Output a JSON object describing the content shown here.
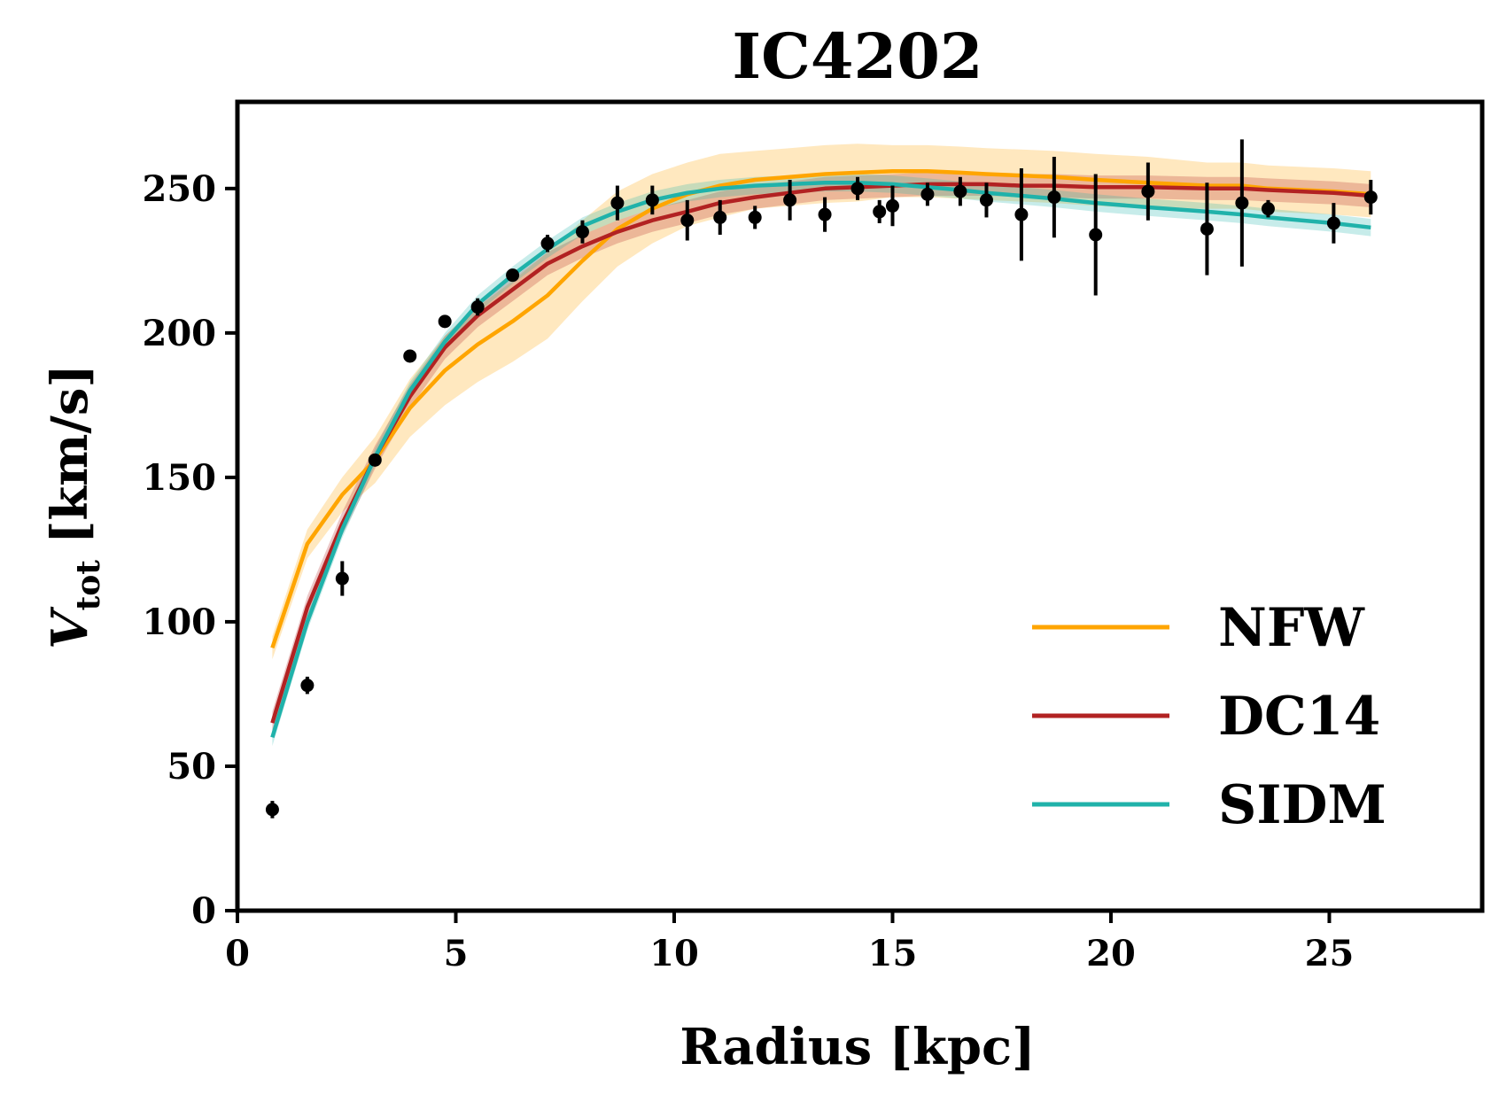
{
  "chart_data": {
    "type": "line",
    "title": "IC4202",
    "xlabel": "Radius [kpc]",
    "ylabel_main": "V",
    "ylabel_sub": "tot",
    "ylabel_unit": "[km/s]",
    "xlim": [
      0,
      28.5
    ],
    "ylim": [
      0,
      280
    ],
    "xticks": [
      0,
      5,
      10,
      15,
      20,
      25
    ],
    "yticks": [
      0,
      50,
      100,
      150,
      200,
      250
    ],
    "grid": false,
    "legend_position": "bottom-right",
    "observed": {
      "x": [
        0.8,
        1.6,
        2.4,
        3.15,
        3.95,
        4.75,
        5.5,
        6.3,
        7.1,
        7.9,
        8.7,
        9.5,
        10.3,
        11.05,
        11.85,
        12.65,
        13.45,
        14.2,
        14.7,
        15.0,
        15.8,
        16.55,
        17.15,
        17.95,
        18.7,
        19.65,
        20.85,
        22.2,
        23.0,
        23.6,
        25.1,
        25.95
      ],
      "y": [
        35,
        78,
        115,
        156,
        192,
        204,
        209,
        220,
        231,
        235,
        245,
        246,
        239,
        240,
        240,
        246,
        241,
        250,
        242,
        244,
        248,
        249,
        246,
        241,
        247,
        234,
        249,
        236,
        245,
        243,
        238,
        247
      ],
      "err": [
        3,
        3,
        6,
        2,
        2,
        2,
        3,
        2,
        3,
        4,
        6,
        5,
        7,
        6,
        4,
        7,
        6,
        4,
        4,
        7,
        4,
        5,
        6,
        16,
        14,
        21,
        10,
        16,
        22,
        3,
        7,
        6
      ],
      "color": "#000000"
    },
    "series": [
      {
        "name": "NFW",
        "color": "#ffa500",
        "x": [
          0.8,
          1.6,
          2.4,
          3.15,
          3.95,
          4.75,
          5.5,
          6.3,
          7.1,
          7.9,
          8.7,
          9.5,
          10.3,
          11.05,
          11.85,
          12.65,
          13.45,
          14.2,
          15.0,
          15.8,
          16.55,
          17.15,
          17.95,
          18.7,
          19.65,
          20.85,
          22.2,
          23.0,
          23.6,
          25.1,
          25.95
        ],
        "y": [
          91,
          127,
          144,
          156,
          174,
          187,
          196,
          204,
          213,
          225,
          236,
          243,
          248,
          251,
          253,
          254,
          255,
          255.5,
          256,
          256,
          255.5,
          255,
          254.5,
          254,
          253,
          252,
          251,
          251,
          250,
          249,
          248
        ],
        "band": [
          4,
          5,
          6,
          8,
          10,
          12,
          13,
          14,
          15,
          14,
          13,
          12,
          11,
          11,
          10,
          10,
          10,
          10,
          9,
          9,
          9,
          9,
          9,
          9,
          9,
          9,
          8,
          8,
          8,
          8,
          8
        ]
      },
      {
        "name": "DC14",
        "color": "#b22222",
        "x": [
          0.8,
          1.6,
          2.4,
          3.15,
          3.95,
          4.75,
          5.5,
          6.3,
          7.1,
          7.9,
          8.7,
          9.5,
          10.3,
          11.05,
          11.85,
          12.65,
          13.45,
          14.2,
          15.0,
          15.8,
          16.55,
          17.15,
          17.95,
          18.7,
          19.65,
          20.85,
          22.2,
          23.0,
          23.6,
          25.1,
          25.95
        ],
        "y": [
          65,
          105,
          134,
          157,
          178,
          195,
          206,
          215,
          224,
          230,
          235,
          239,
          242,
          245,
          247,
          248.5,
          250,
          250.5,
          251,
          251.5,
          251.5,
          251.5,
          251,
          251,
          250.5,
          250.5,
          250,
          250,
          249.5,
          248.5,
          247.5
        ],
        "band": [
          4,
          4,
          4,
          4,
          4,
          4,
          4,
          4,
          4,
          4,
          4,
          4,
          4,
          4,
          4,
          4,
          4,
          4,
          4,
          4,
          4,
          4,
          4,
          4,
          4,
          4,
          4,
          4,
          4,
          4,
          4
        ]
      },
      {
        "name": "SIDM",
        "color": "#20b2aa",
        "x": [
          0.8,
          1.6,
          2.4,
          3.15,
          3.95,
          4.75,
          5.5,
          6.3,
          7.1,
          7.9,
          8.7,
          9.5,
          10.3,
          11.05,
          11.85,
          12.65,
          13.45,
          14.2,
          15.0,
          15.8,
          16.55,
          17.15,
          17.95,
          18.7,
          19.65,
          20.85,
          22.2,
          23.0,
          23.6,
          25.1,
          25.95
        ],
        "y": [
          60,
          100,
          132,
          157,
          180,
          197,
          210,
          220,
          229,
          237,
          242,
          246,
          248.5,
          250,
          251,
          251.5,
          252,
          252,
          251.5,
          250.5,
          249.5,
          248.5,
          247.5,
          246.5,
          245,
          243.5,
          242,
          241,
          240,
          238,
          236.5
        ],
        "band": [
          3,
          3,
          3,
          3,
          3,
          3,
          3,
          3,
          3,
          3,
          3,
          3,
          3,
          3,
          3,
          3,
          3,
          3,
          3,
          3,
          3,
          3,
          3,
          3,
          3,
          3,
          3,
          3,
          3,
          3,
          3
        ]
      }
    ]
  }
}
